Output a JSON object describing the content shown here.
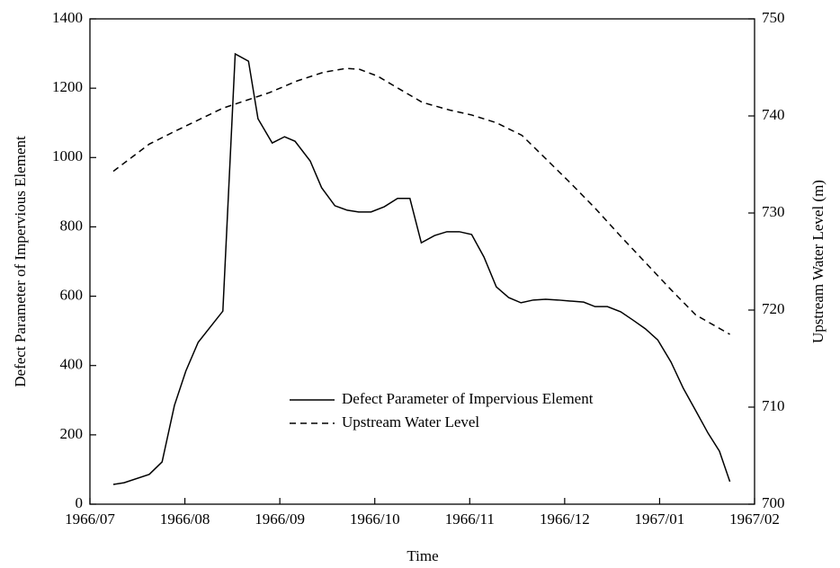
{
  "chart_data": {
    "type": "line",
    "xlabel": "Time",
    "ylabel": "Defect Parameter of Impervious Element",
    "y2label": "Upstream Water Level (m)",
    "xlim": [
      0,
      7
    ],
    "xticks": [
      {
        "value": 0,
        "label": "1966/07"
      },
      {
        "value": 1,
        "label": "1966/08"
      },
      {
        "value": 2,
        "label": "1966/09"
      },
      {
        "value": 3,
        "label": "1966/10"
      },
      {
        "value": 4,
        "label": "1966/11"
      },
      {
        "value": 5,
        "label": "1966/12"
      },
      {
        "value": 6,
        "label": "1967/01"
      },
      {
        "value": 7,
        "label": "1967/02"
      }
    ],
    "ylim": [
      0,
      1400
    ],
    "yticks": [
      0,
      200,
      400,
      600,
      800,
      1000,
      1200,
      1400
    ],
    "y2lim": [
      700,
      750
    ],
    "y2ticks": [
      700,
      710,
      720,
      730,
      740,
      750
    ],
    "legend": "lower center",
    "series": [
      {
        "name": "Defect Parameter of Impervious Element",
        "color": "#000000",
        "linestyle": "solid",
        "x": [
          0.246,
          0.36,
          0.625,
          0.76,
          0.89,
          1.01,
          1.14,
          1.4,
          1.53,
          1.67,
          1.77,
          1.92,
          2.05,
          2.16,
          2.32,
          2.44,
          2.58,
          2.71,
          2.83,
          2.96,
          3.1,
          3.24,
          3.37,
          3.49,
          3.63,
          3.76,
          3.89,
          4.02,
          4.15,
          4.28,
          4.41,
          4.54,
          4.67,
          4.8,
          4.93,
          5.06,
          5.2,
          5.32,
          5.45,
          5.59,
          5.72,
          5.85,
          5.98,
          6.12,
          6.25,
          6.38,
          6.51,
          6.63,
          6.74
        ],
        "values": [
          57,
          62,
          86,
          122,
          285,
          384,
          467,
          557,
          1299,
          1278,
          1112,
          1042,
          1060,
          1047,
          990,
          913,
          861,
          848,
          843,
          843,
          858,
          882,
          882,
          754,
          775,
          786,
          786,
          778,
          713,
          627,
          596,
          581,
          589,
          591,
          589,
          586,
          583,
          570,
          570,
          555,
          531,
          506,
          474,
          410,
          334,
          270,
          205,
          153,
          65
        ]
      },
      {
        "name": "Upstream Water Level",
        "color": "#000000",
        "linestyle": "dashed",
        "axis": "y2",
        "x": [
          0.246,
          0.625,
          0.89,
          1.4,
          1.89,
          2.18,
          2.46,
          2.7,
          2.84,
          3.03,
          3.22,
          3.5,
          3.79,
          4.02,
          4.28,
          4.55,
          4.8,
          5.06,
          5.32,
          5.59,
          5.85,
          6.12,
          6.38,
          6.74
        ],
        "values": [
          734.3,
          737.1,
          738.4,
          740.8,
          742.4,
          743.6,
          744.5,
          744.9,
          744.8,
          744.1,
          743.0,
          741.4,
          740.6,
          740.1,
          739.3,
          738.0,
          735.6,
          733.1,
          730.5,
          727.6,
          724.9,
          722.1,
          719.5,
          717.5
        ]
      }
    ]
  }
}
